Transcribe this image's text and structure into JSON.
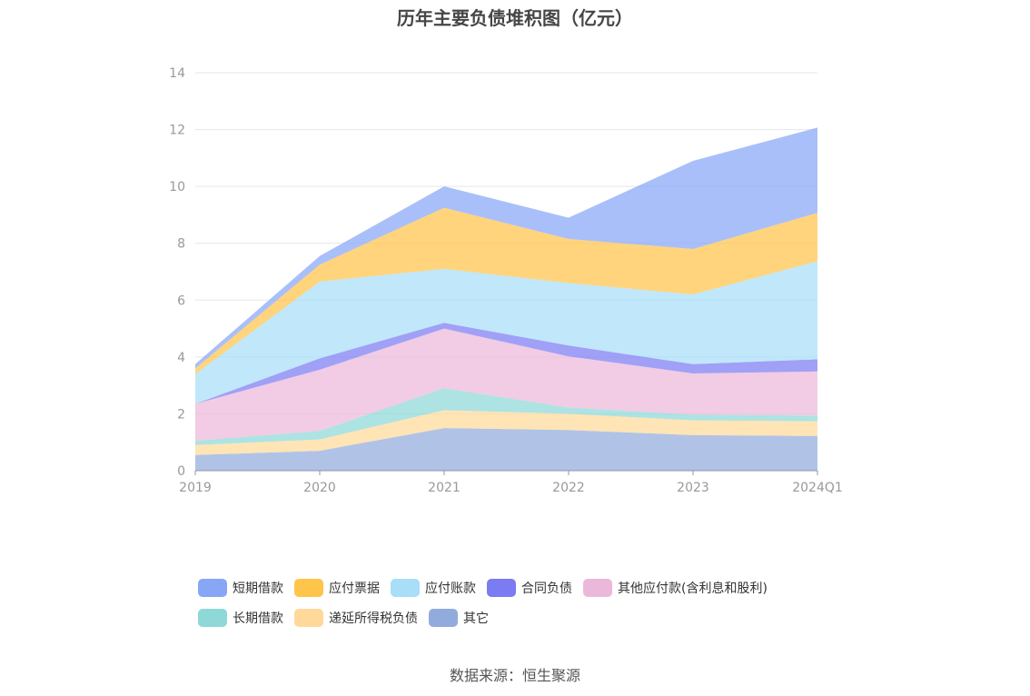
{
  "chart_data": {
    "type": "area",
    "stacked": true,
    "title": "历年主要负债堆积图（亿元）",
    "categories": [
      "2019",
      "2020",
      "2021",
      "2022",
      "2023",
      "2024Q1"
    ],
    "ylim": [
      0,
      14
    ],
    "yticks": [
      0,
      2,
      4,
      6,
      8,
      10,
      12,
      14
    ],
    "grid": true,
    "legend_position": "bottom",
    "series": [
      {
        "name": "其它",
        "color": "#91acdc",
        "values": [
          0.55,
          0.7,
          1.5,
          1.43,
          1.25,
          1.22
        ]
      },
      {
        "name": "递延所得税负债",
        "color": "#ffd99a",
        "values": [
          0.35,
          0.4,
          0.63,
          0.57,
          0.52,
          0.52
        ]
      },
      {
        "name": "长期借款",
        "color": "#8ed8d8",
        "values": [
          0.15,
          0.3,
          0.77,
          0.22,
          0.2,
          0.2
        ]
      },
      {
        "name": "其他应付款(含利息和股利)",
        "color": "#ecb8da",
        "values": [
          1.3,
          2.15,
          2.1,
          1.8,
          1.45,
          1.55
        ]
      },
      {
        "name": "合同负债",
        "color": "#7b7cf2",
        "values": [
          0.0,
          0.4,
          0.2,
          0.38,
          0.33,
          0.43
        ]
      },
      {
        "name": "应付账款",
        "color": "#a8def8",
        "values": [
          1.05,
          2.7,
          1.9,
          2.2,
          2.45,
          3.45
        ]
      },
      {
        "name": "应付票据",
        "color": "#ffc44a",
        "values": [
          0.2,
          0.6,
          2.15,
          1.55,
          1.6,
          1.7
        ]
      },
      {
        "name": "短期借款",
        "color": "#88a6f6",
        "values": [
          0.15,
          0.3,
          0.75,
          0.75,
          3.1,
          3.0
        ]
      }
    ]
  },
  "legend": {
    "row1": [
      {
        "label": "短期借款",
        "color": "#88a6f6"
      },
      {
        "label": "应付票据",
        "color": "#ffc44a"
      },
      {
        "label": "应付账款",
        "color": "#a8def8"
      },
      {
        "label": "合同负债",
        "color": "#7b7cf2"
      },
      {
        "label": "其他应付款(含利息和股利)",
        "color": "#ecb8da"
      }
    ],
    "row2": [
      {
        "label": "长期借款",
        "color": "#8ed8d8"
      },
      {
        "label": "递延所得税负债",
        "color": "#ffd99a"
      },
      {
        "label": "其它",
        "color": "#91acdc"
      }
    ]
  },
  "source": "数据来源：恒生聚源"
}
